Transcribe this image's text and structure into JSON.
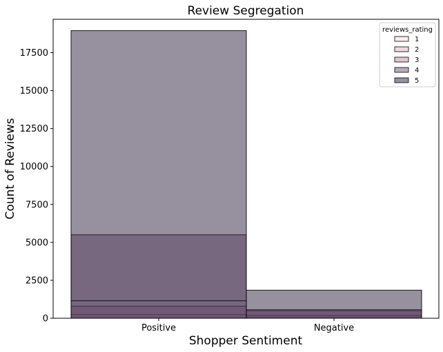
{
  "chart_data": {
    "type": "bar",
    "stacked_overlay": true,
    "title": "Review Segregation",
    "xlabel": "Shopper Sentiment",
    "ylabel": "Count of Reviews",
    "categories": [
      "Positive",
      "Negative"
    ],
    "ylim": [
      0,
      19700
    ],
    "yticks": [
      0,
      2500,
      5000,
      7500,
      10000,
      12500,
      15000,
      17500
    ],
    "ytick_labels": [
      "0",
      "2500",
      "5000",
      "7500",
      "10000",
      "12500",
      "15000",
      "17500"
    ],
    "legend_title": "reviews_rating",
    "legend_position": "top-right",
    "grid": false,
    "series": [
      {
        "name": "1",
        "color": "#efdbe0",
        "alpha": 0.5,
        "values": [
          0,
          150
        ]
      },
      {
        "name": "2",
        "color": "#dcb5bc",
        "alpha": 0.5,
        "values": [
          250,
          180
        ]
      },
      {
        "name": "3",
        "color": "#c18fa8",
        "alpha": 0.5,
        "values": [
          800,
          500
        ]
      },
      {
        "name": "4",
        "color": "#7d5580",
        "alpha": 0.5,
        "values": [
          5500,
          560
        ]
      },
      {
        "name": "5",
        "color": "#30233f",
        "alpha": 0.5,
        "values": [
          18950,
          1850
        ]
      }
    ],
    "extra_segment_tops": [
      [
        1150
      ],
      []
    ]
  }
}
